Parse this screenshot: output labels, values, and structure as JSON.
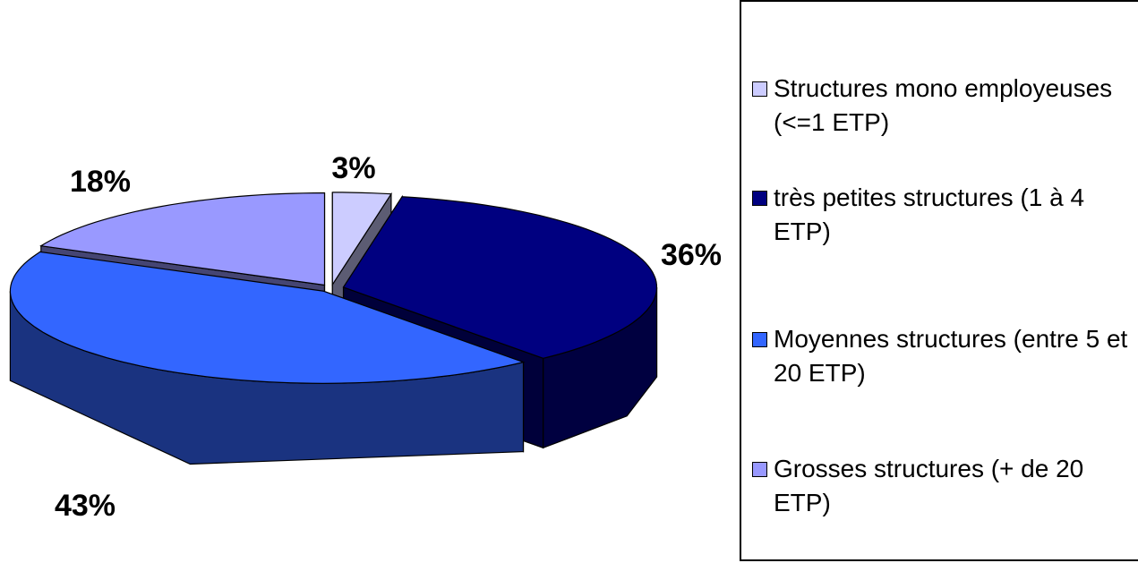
{
  "chart_data": {
    "type": "pie",
    "categories": [
      "Structures mono employeuses (<=1 ETP)",
      "très petites structures (1 à 4 ETP)",
      "Moyennes structures (entre 5 et 20 ETP)",
      "Grosses structures (+ de 20 ETP)"
    ],
    "values": [
      3,
      36,
      43,
      18
    ],
    "value_labels": [
      "3%",
      "36%",
      "43%",
      "18%"
    ],
    "colors": [
      "#ccccff",
      "#000080",
      "#3366ff",
      "#9999ff"
    ],
    "legend": "right"
  }
}
